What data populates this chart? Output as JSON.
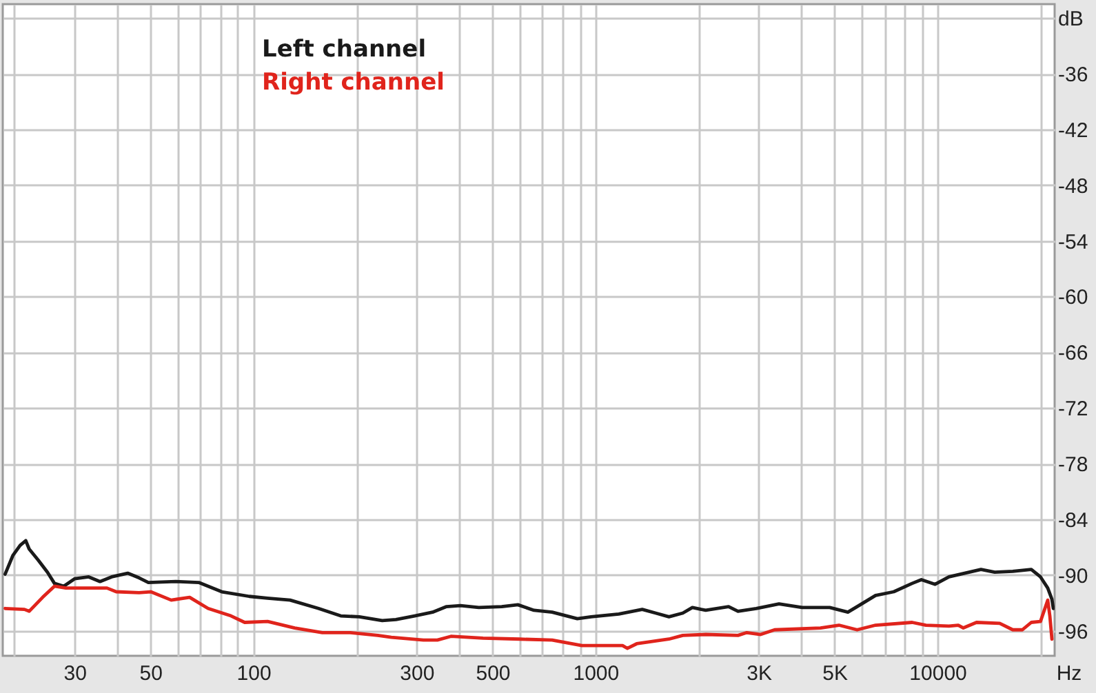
{
  "chart_data": {
    "type": "line",
    "xlabel": "Hz",
    "log": "x",
    "grid": true,
    "legend": "top left",
    "line_style": "solid",
    "xlim": [
      18.5,
      22000
    ],
    "ylim": [
      -98.7,
      -28.5
    ],
    "xticks": [
      {
        "value": 20,
        "label": null
      },
      30,
      {
        "value": 40,
        "label": null
      },
      50,
      {
        "value": 60,
        "label": null
      },
      {
        "value": 70,
        "label": null
      },
      {
        "value": 80,
        "label": null
      },
      {
        "value": 90,
        "label": null
      },
      100,
      {
        "value": 200,
        "label": null
      },
      300,
      {
        "value": 400,
        "label": null
      },
      500,
      {
        "value": 600,
        "label": null
      },
      {
        "value": 700,
        "label": null
      },
      {
        "value": 800,
        "label": null
      },
      {
        "value": 900,
        "label": null
      },
      1000,
      {
        "value": 2000,
        "label": null
      },
      {
        "value": 3000,
        "label": "3K"
      },
      {
        "value": 4000,
        "label": null
      },
      {
        "value": 5000,
        "label": "5K"
      },
      {
        "value": 6000,
        "label": null
      },
      {
        "value": 7000,
        "label": null
      },
      {
        "value": 8000,
        "label": null
      },
      {
        "value": 9000,
        "label": null
      },
      10000,
      {
        "value": 20000,
        "label": null
      }
    ],
    "yticks": [
      {
        "value": -30,
        "label": "dB"
      },
      -36,
      -42,
      -48,
      -54,
      -60,
      -66,
      -72,
      -78,
      -84,
      -90,
      -96
    ],
    "series": [
      {
        "name": "Left channel",
        "color": "#1a1a1a",
        "x": [
          18.8,
          19.8,
          20.8,
          21.6,
          22.1,
          23.5,
          25,
          26.2,
          27.9,
          30,
          33,
          35.6,
          38.5,
          42.9,
          46.3,
          49.3,
          59.3,
          69.2,
          80.8,
          97.3,
          110,
          128,
          155,
          180,
          204,
          238,
          261,
          296,
          334,
          367,
          403,
          456,
          532,
          593,
          661,
          747,
          885,
          971,
          1170,
          1370,
          1500,
          1640,
          1800,
          1920,
          2100,
          2450,
          2610,
          2950,
          3440,
          4020,
          4840,
          5470,
          5820,
          6590,
          7450,
          8430,
          8970,
          9840,
          10800,
          13400,
          14700,
          16600,
          18800,
          20000,
          21000,
          21600,
          21800
        ],
        "values": [
          -89.9,
          -87.9,
          -86.8,
          -86.3,
          -87.2,
          -88.4,
          -89.7,
          -90.9,
          -91.2,
          -90.4,
          -90.2,
          -90.7,
          -90.2,
          -89.8,
          -90.3,
          -90.8,
          -90.7,
          -90.8,
          -91.8,
          -92.3,
          -92.5,
          -92.7,
          -93.6,
          -94.4,
          -94.5,
          -94.9,
          -94.8,
          -94.4,
          -94.0,
          -93.4,
          -93.3,
          -93.5,
          -93.4,
          -93.2,
          -93.8,
          -94.0,
          -94.7,
          -94.5,
          -94.2,
          -93.7,
          -94.1,
          -94.5,
          -94.1,
          -93.5,
          -93.8,
          -93.4,
          -93.9,
          -93.6,
          -93.1,
          -93.5,
          -93.5,
          -94.0,
          -93.4,
          -92.2,
          -91.8,
          -90.9,
          -90.5,
          -91.0,
          -90.2,
          -89.4,
          -89.7,
          -89.6,
          -89.4,
          -90.2,
          -91.4,
          -92.6,
          -93.6
        ]
      },
      {
        "name": "Right channel",
        "color": "#e0241c",
        "x": [
          18.8,
          21.4,
          22.1,
          24.2,
          26.2,
          28.3,
          30,
          37.3,
          39.7,
          46.3,
          50.1,
          57.5,
          65.1,
          73.7,
          86,
          94.3,
          110,
          132,
          159,
          192,
          231,
          253,
          314,
          345,
          378,
          469,
          600,
          747,
          912,
          1200,
          1240,
          1320,
          1640,
          1800,
          2100,
          2610,
          2770,
          3040,
          3340,
          4550,
          5150,
          5820,
          6590,
          8430,
          9250,
          10800,
          11500,
          11900,
          13000,
          15200,
          16600,
          17700,
          18800,
          20000,
          21000,
          21300,
          21600
        ],
        "values": [
          -93.6,
          -93.7,
          -93.9,
          -92.4,
          -91.2,
          -91.4,
          -91.4,
          -91.4,
          -91.8,
          -91.9,
          -91.8,
          -92.7,
          -92.4,
          -93.6,
          -94.4,
          -95.1,
          -95.0,
          -95.7,
          -96.2,
          -96.2,
          -96.5,
          -96.7,
          -97.0,
          -97.0,
          -96.6,
          -96.8,
          -96.9,
          -97.0,
          -97.6,
          -97.6,
          -97.9,
          -97.4,
          -96.9,
          -96.5,
          -96.4,
          -96.5,
          -96.2,
          -96.4,
          -95.9,
          -95.7,
          -95.4,
          -95.9,
          -95.4,
          -95.1,
          -95.4,
          -95.5,
          -95.4,
          -95.7,
          -95.1,
          -95.2,
          -95.9,
          -95.9,
          -95.1,
          -95.0,
          -92.7,
          -94.4,
          -96.9
        ]
      }
    ]
  }
}
